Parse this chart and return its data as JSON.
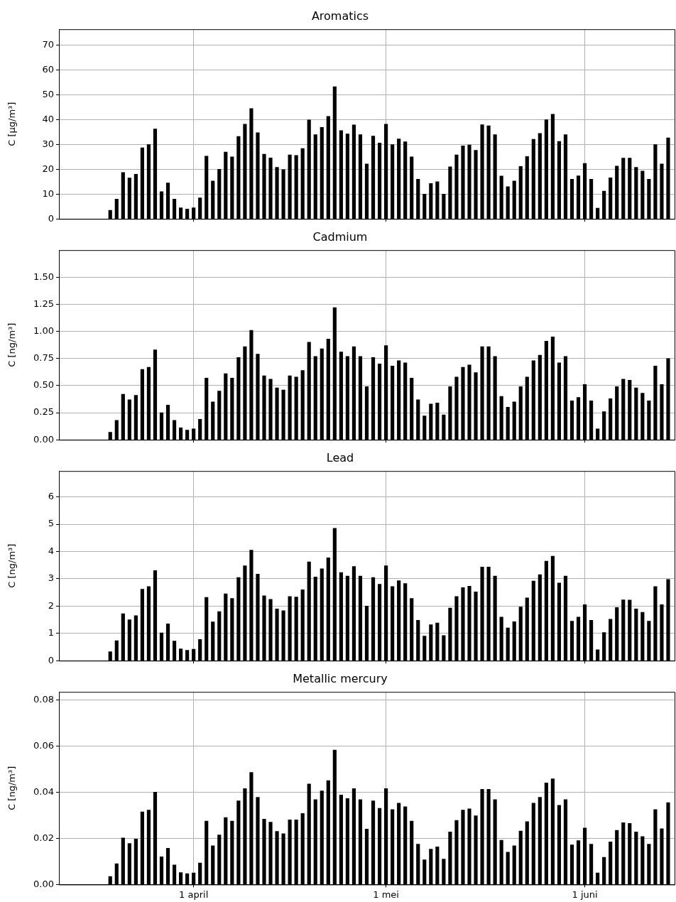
{
  "chart_data": [
    {
      "type": "bar",
      "title": "Aromatics",
      "ylabel": "C [μg/m³]",
      "color": "#000000",
      "grid": true,
      "tick_labels": "y",
      "xlim": [
        "--03-11",
        "--06-15"
      ],
      "ylim": [
        0,
        76.5
      ],
      "yticks": [
        0,
        10,
        20,
        30,
        40,
        50,
        60,
        70
      ],
      "xticks": [
        {
          "value": "--04-01",
          "label": "1 april"
        },
        {
          "value": "--05-01",
          "label": "1 mei"
        },
        {
          "value": "--06-01",
          "label": "1 juni"
        }
      ],
      "x": [
        "--03-19",
        "--03-20",
        "--03-21",
        "--03-22",
        "--03-23",
        "--03-24",
        "--03-25",
        "--03-26",
        "--03-27",
        "--03-28",
        "--03-29",
        "--03-30",
        "--03-31",
        "--04-01",
        "--04-02",
        "--04-03",
        "--04-04",
        "--04-05",
        "--04-06",
        "--04-07",
        "--04-08",
        "--04-09",
        "--04-10",
        "--04-11",
        "--04-12",
        "--04-13",
        "--04-14",
        "--04-15",
        "--04-16",
        "--04-17",
        "--04-18",
        "--04-19",
        "--04-20",
        "--04-21",
        "--04-22",
        "--04-23",
        "--04-24",
        "--04-25",
        "--04-26",
        "--04-27",
        "--04-28",
        "--04-29",
        "--04-30",
        "--05-01",
        "--05-02",
        "--05-03",
        "--05-04",
        "--05-05",
        "--05-06",
        "--05-07",
        "--05-08",
        "--05-09",
        "--05-10",
        "--05-11",
        "--05-12",
        "--05-13",
        "--05-14",
        "--05-15",
        "--05-16",
        "--05-17",
        "--05-18",
        "--05-19",
        "--05-20",
        "--05-21",
        "--05-22",
        "--05-23",
        "--05-24",
        "--05-25",
        "--05-26",
        "--05-27",
        "--05-28",
        "--05-29",
        "--05-30",
        "--05-31",
        "--06-01",
        "--06-02",
        "--06-03",
        "--06-04",
        "--06-05",
        "--06-06",
        "--06-07",
        "--06-08",
        "--06-09",
        "--06-10",
        "--06-11",
        "--06-12",
        "--06-13",
        "--06-14"
      ],
      "values": [
        3.5,
        8,
        18.7,
        16.5,
        18,
        28.7,
        30,
        36.3,
        11,
        14.5,
        8,
        4.5,
        4,
        4.5,
        8.5,
        25.3,
        15.3,
        20,
        27,
        25,
        33.3,
        38.2,
        44.5,
        34.8,
        26.1,
        24.6,
        20.8,
        19.9,
        25.8,
        25.6,
        28.4,
        39.9,
        34,
        36.9,
        41.4,
        53.3,
        35.6,
        34.3,
        37.9,
        34,
        22.2,
        33.4,
        30.6,
        38.2,
        30,
        32.3,
        31.1,
        25,
        16,
        10,
        14.3,
        15,
        10,
        21,
        25.8,
        29.5,
        29.8,
        27.7,
        38,
        37.6,
        34,
        17.3,
        13,
        15.3,
        21.2,
        25.2,
        32.1,
        34.5,
        40,
        42.2,
        31.3,
        34,
        16,
        17.4,
        22.4,
        16,
        4.3,
        11.2,
        16.6,
        21.3,
        24.5,
        24.5,
        20.8,
        19.3,
        16,
        30,
        22.2,
        32.7
      ]
    },
    {
      "type": "bar",
      "title": "Cadmium",
      "ylabel": "C [ng/m³]",
      "color": "#000000",
      "grid": true,
      "tick_labels": "y",
      "xlim": [
        "--03-11",
        "--06-15"
      ],
      "ylim": [
        0,
        1.75
      ],
      "yticks": [
        {
          "value": 0,
          "label": "0.00"
        },
        {
          "value": 0.25,
          "label": "0.25"
        },
        {
          "value": 0.5,
          "label": "0.50"
        },
        {
          "value": 0.75,
          "label": "0.75"
        },
        {
          "value": 1,
          "label": "1.00"
        },
        {
          "value": 1.25,
          "label": "1.25"
        },
        {
          "value": 1.5,
          "label": "1.50"
        }
      ],
      "xticks": [
        {
          "value": "--04-01",
          "label": "1 april"
        },
        {
          "value": "--05-01",
          "label": "1 mei"
        },
        {
          "value": "--06-01",
          "label": "1 juni"
        }
      ],
      "x": [
        "--03-19",
        "--03-20",
        "--03-21",
        "--03-22",
        "--03-23",
        "--03-24",
        "--03-25",
        "--03-26",
        "--03-27",
        "--03-28",
        "--03-29",
        "--03-30",
        "--03-31",
        "--04-01",
        "--04-02",
        "--04-03",
        "--04-04",
        "--04-05",
        "--04-06",
        "--04-07",
        "--04-08",
        "--04-09",
        "--04-10",
        "--04-11",
        "--04-12",
        "--04-13",
        "--04-14",
        "--04-15",
        "--04-16",
        "--04-17",
        "--04-18",
        "--04-19",
        "--04-20",
        "--04-21",
        "--04-22",
        "--04-23",
        "--04-24",
        "--04-25",
        "--04-26",
        "--04-27",
        "--04-28",
        "--04-29",
        "--04-30",
        "--05-01",
        "--05-02",
        "--05-03",
        "--05-04",
        "--05-05",
        "--05-06",
        "--05-07",
        "--05-08",
        "--05-09",
        "--05-10",
        "--05-11",
        "--05-12",
        "--05-13",
        "--05-14",
        "--05-15",
        "--05-16",
        "--05-17",
        "--05-18",
        "--05-19",
        "--05-20",
        "--05-21",
        "--05-22",
        "--05-23",
        "--05-24",
        "--05-25",
        "--05-26",
        "--05-27",
        "--05-28",
        "--05-29",
        "--05-30",
        "--05-31",
        "--06-01",
        "--06-02",
        "--06-03",
        "--06-04",
        "--06-05",
        "--06-06",
        "--06-07",
        "--06-08",
        "--06-09",
        "--06-10",
        "--06-11",
        "--06-12",
        "--06-13",
        "--06-14"
      ],
      "values": [
        0.07,
        0.18,
        0.42,
        0.37,
        0.41,
        0.65,
        0.67,
        0.83,
        0.25,
        0.32,
        0.18,
        0.11,
        0.09,
        0.1,
        0.19,
        0.57,
        0.35,
        0.45,
        0.61,
        0.57,
        0.76,
        0.86,
        1.01,
        0.79,
        0.59,
        0.56,
        0.48,
        0.46,
        0.59,
        0.58,
        0.64,
        0.9,
        0.77,
        0.84,
        0.93,
        1.22,
        0.81,
        0.77,
        0.86,
        0.77,
        0.49,
        0.76,
        0.7,
        0.87,
        0.68,
        0.73,
        0.71,
        0.57,
        0.37,
        0.22,
        0.33,
        0.34,
        0.23,
        0.49,
        0.58,
        0.67,
        0.69,
        0.62,
        0.86,
        0.86,
        0.77,
        0.4,
        0.3,
        0.35,
        0.49,
        0.58,
        0.73,
        0.78,
        0.91,
        0.95,
        0.71,
        0.77,
        0.36,
        0.39,
        0.51,
        0.36,
        0.1,
        0.26,
        0.38,
        0.49,
        0.56,
        0.55,
        0.48,
        0.43,
        0.36,
        0.68,
        0.51,
        0.75
      ]
    },
    {
      "type": "bar",
      "title": "Lead",
      "ylabel": "C [ng/m³]",
      "color": "#000000",
      "grid": true,
      "tick_labels": "y",
      "xlim": [
        "--03-11",
        "--06-15"
      ],
      "ylim": [
        0,
        6.95
      ],
      "yticks": [
        0,
        1,
        2,
        3,
        4,
        5,
        6
      ],
      "xticks": [
        {
          "value": "--04-01",
          "label": "1 april"
        },
        {
          "value": "--05-01",
          "label": "1 mei"
        },
        {
          "value": "--06-01",
          "label": "1 juni"
        }
      ],
      "x": [
        "--03-19",
        "--03-20",
        "--03-21",
        "--03-22",
        "--03-23",
        "--03-24",
        "--03-25",
        "--03-26",
        "--03-27",
        "--03-28",
        "--03-29",
        "--03-30",
        "--03-31",
        "--04-01",
        "--04-02",
        "--04-03",
        "--04-04",
        "--04-05",
        "--04-06",
        "--04-07",
        "--04-08",
        "--04-09",
        "--04-10",
        "--04-11",
        "--04-12",
        "--04-13",
        "--04-14",
        "--04-15",
        "--04-16",
        "--04-17",
        "--04-18",
        "--04-19",
        "--04-20",
        "--04-21",
        "--04-22",
        "--04-23",
        "--04-24",
        "--04-25",
        "--04-26",
        "--04-27",
        "--04-28",
        "--04-29",
        "--04-30",
        "--05-01",
        "--05-02",
        "--05-03",
        "--05-04",
        "--05-05",
        "--05-06",
        "--05-07",
        "--05-08",
        "--05-09",
        "--05-10",
        "--05-11",
        "--05-12",
        "--05-13",
        "--05-14",
        "--05-15",
        "--05-16",
        "--05-17",
        "--05-18",
        "--05-19",
        "--05-20",
        "--05-21",
        "--05-22",
        "--05-23",
        "--05-24",
        "--05-25",
        "--05-26",
        "--05-27",
        "--05-28",
        "--05-29",
        "--05-30",
        "--05-31",
        "--06-01",
        "--06-02",
        "--06-03",
        "--06-04",
        "--06-05",
        "--06-06",
        "--06-07",
        "--06-08",
        "--06-09",
        "--06-10",
        "--06-11",
        "--06-12",
        "--06-13",
        "--06-14"
      ],
      "values": [
        0.33,
        0.73,
        1.72,
        1.5,
        1.65,
        2.62,
        2.72,
        3.3,
        1.02,
        1.35,
        0.72,
        0.43,
        0.38,
        0.42,
        0.78,
        2.32,
        1.42,
        1.8,
        2.45,
        2.28,
        3.05,
        3.48,
        4.05,
        3.17,
        2.38,
        2.25,
        1.9,
        1.83,
        2.35,
        2.33,
        2.6,
        3.62,
        3.07,
        3.37,
        3.77,
        4.85,
        3.23,
        3.1,
        3.45,
        3.1,
        2,
        3.05,
        2.8,
        3.48,
        2.72,
        2.93,
        2.83,
        2.28,
        1.48,
        0.9,
        1.32,
        1.38,
        0.92,
        1.93,
        2.35,
        2.68,
        2.73,
        2.52,
        3.43,
        3.43,
        3.1,
        1.6,
        1.2,
        1.43,
        1.97,
        2.3,
        2.92,
        3.15,
        3.65,
        3.83,
        2.85,
        3.1,
        1.45,
        1.6,
        2.05,
        1.48,
        0.4,
        1.03,
        1.52,
        1.95,
        2.23,
        2.22,
        1.9,
        1.77,
        1.45,
        2.72,
        2.05,
        2.98
      ]
    },
    {
      "type": "bar",
      "title": "Metallic mercury",
      "ylabel": "C [ng/m³]",
      "color": "#000000",
      "grid": true,
      "xlim": [
        "--03-11",
        "--06-15"
      ],
      "ylim": [
        0,
        0.0834
      ],
      "yticks": [
        {
          "value": 0,
          "label": "0.00"
        },
        {
          "value": 0.02,
          "label": "0.02"
        },
        {
          "value": 0.04,
          "label": "0.04"
        },
        {
          "value": 0.06,
          "label": "0.06"
        },
        {
          "value": 0.08,
          "label": "0.08"
        }
      ],
      "xticks": [
        {
          "value": "--04-01",
          "label": "1 april"
        },
        {
          "value": "--05-01",
          "label": "1 mei"
        },
        {
          "value": "--06-01",
          "label": "1 juni"
        }
      ],
      "x": [
        "--03-19",
        "--03-20",
        "--03-21",
        "--03-22",
        "--03-23",
        "--03-24",
        "--03-25",
        "--03-26",
        "--03-27",
        "--03-28",
        "--03-29",
        "--03-30",
        "--03-31",
        "--04-01",
        "--04-02",
        "--04-03",
        "--04-04",
        "--04-05",
        "--04-06",
        "--04-07",
        "--04-08",
        "--04-09",
        "--04-10",
        "--04-11",
        "--04-12",
        "--04-13",
        "--04-14",
        "--04-15",
        "--04-16",
        "--04-17",
        "--04-18",
        "--04-19",
        "--04-20",
        "--04-21",
        "--04-22",
        "--04-23",
        "--04-24",
        "--04-25",
        "--04-26",
        "--04-27",
        "--04-28",
        "--04-29",
        "--04-30",
        "--05-01",
        "--05-02",
        "--05-03",
        "--05-04",
        "--05-05",
        "--05-06",
        "--05-07",
        "--05-08",
        "--05-09",
        "--05-10",
        "--05-11",
        "--05-12",
        "--05-13",
        "--05-14",
        "--05-15",
        "--05-16",
        "--05-17",
        "--05-18",
        "--05-19",
        "--05-20",
        "--05-21",
        "--05-22",
        "--05-23",
        "--05-24",
        "--05-25",
        "--05-26",
        "--05-27",
        "--05-28",
        "--05-29",
        "--05-30",
        "--05-31",
        "--06-01",
        "--06-02",
        "--06-03",
        "--06-04",
        "--06-05",
        "--06-06",
        "--06-07",
        "--06-08",
        "--06-09",
        "--06-10",
        "--06-11",
        "--06-12",
        "--06-13",
        "--06-14"
      ],
      "values": [
        0.0035,
        0.009,
        0.0202,
        0.0178,
        0.0197,
        0.0315,
        0.0322,
        0.04,
        0.012,
        0.0157,
        0.0085,
        0.0052,
        0.0047,
        0.005,
        0.0093,
        0.0275,
        0.0168,
        0.0215,
        0.029,
        0.0275,
        0.0362,
        0.0415,
        0.0485,
        0.0378,
        0.0283,
        0.027,
        0.023,
        0.022,
        0.028,
        0.028,
        0.0308,
        0.0435,
        0.0368,
        0.0405,
        0.045,
        0.0582,
        0.0388,
        0.0372,
        0.0415,
        0.0368,
        0.024,
        0.0362,
        0.033,
        0.0415,
        0.0325,
        0.0352,
        0.0337,
        0.0275,
        0.0175,
        0.0107,
        0.0153,
        0.0163,
        0.011,
        0.0228,
        0.0278,
        0.0322,
        0.0328,
        0.0298,
        0.0412,
        0.0412,
        0.0368,
        0.0192,
        0.014,
        0.0168,
        0.0232,
        0.0272,
        0.0352,
        0.0378,
        0.044,
        0.0458,
        0.0343,
        0.0368,
        0.0172,
        0.019,
        0.0245,
        0.0175,
        0.005,
        0.0118,
        0.0185,
        0.0235,
        0.0268,
        0.0265,
        0.0228,
        0.0208,
        0.0175,
        0.0325,
        0.0242,
        0.0355
      ]
    }
  ]
}
